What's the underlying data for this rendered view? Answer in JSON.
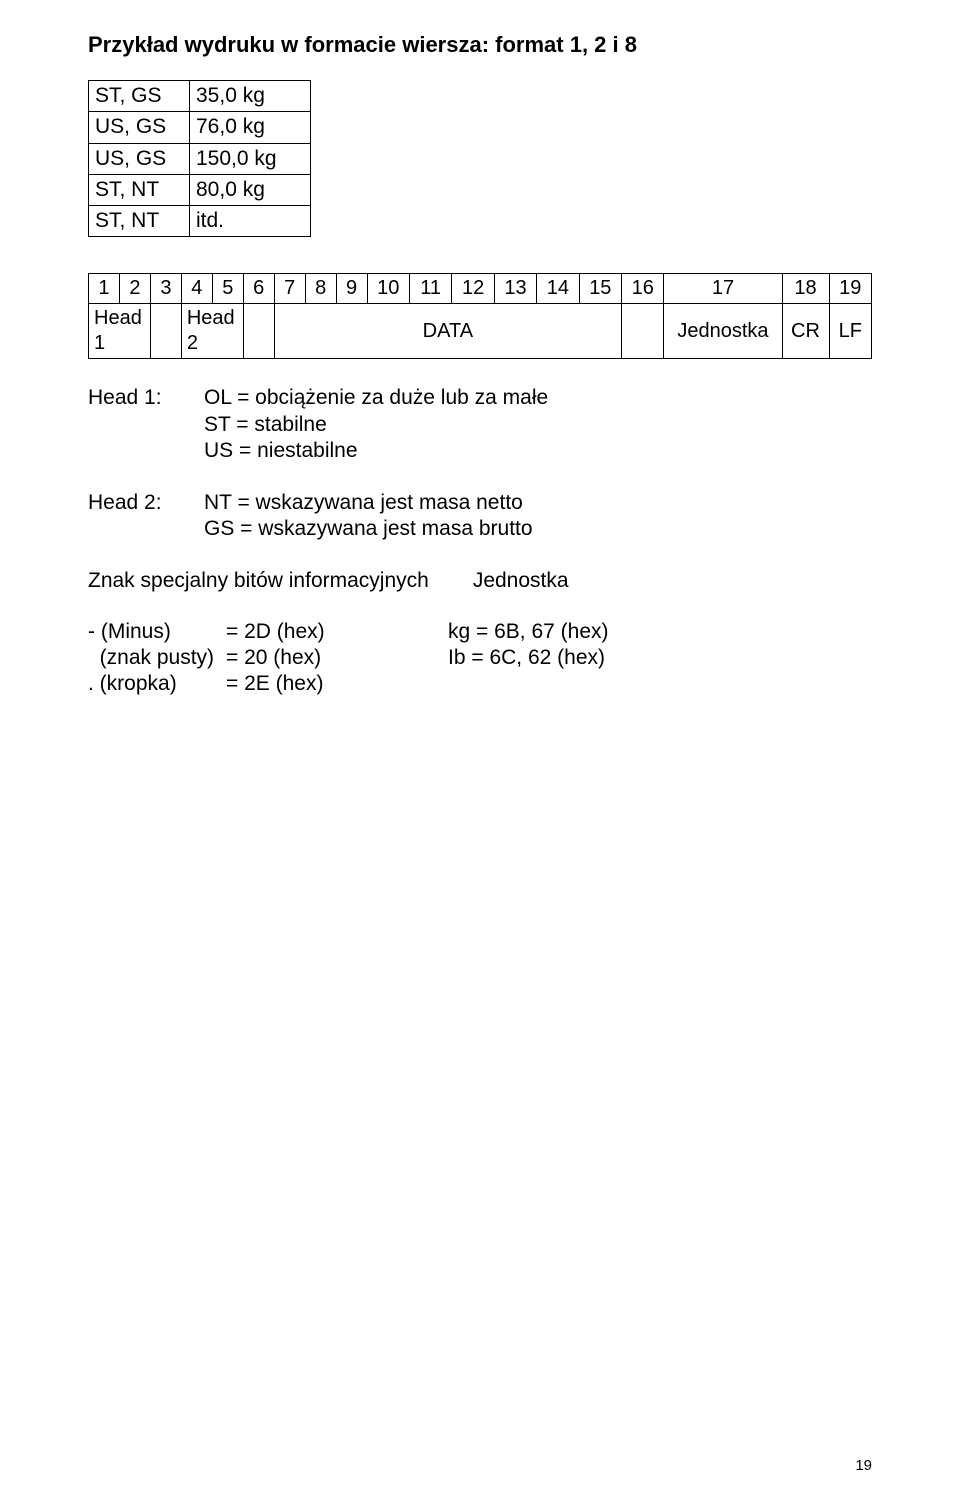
{
  "heading": "Przykład wydruku w formacie wiersza: format 1, 2 i 8",
  "table1": {
    "rows": [
      {
        "a": "ST, GS",
        "b": "35,0 kg"
      },
      {
        "a": "US, GS",
        "b": "76,0 kg"
      },
      {
        "a": "US, GS",
        "b": "150,0 kg"
      },
      {
        "a": "ST, NT",
        "b": "80,0 kg"
      },
      {
        "a": "ST, NT",
        "b": "itd."
      }
    ]
  },
  "table2": {
    "numbers": [
      "1",
      "2",
      "3",
      "4",
      "5",
      "6",
      "7",
      "8",
      "9",
      "10",
      "11",
      "12",
      "13",
      "14",
      "15",
      "16",
      "17",
      "18",
      "19"
    ],
    "labels": {
      "head1": "Head 1",
      "head2": "Head 2",
      "data": "DATA",
      "unit": "Jednostka",
      "cr": "CR",
      "lf": "LF"
    }
  },
  "head1": {
    "label": "Head 1:",
    "lines": [
      "OL = obciążenie za duże lub za małe",
      "ST = stabilne",
      "US = niestabilne"
    ]
  },
  "head2": {
    "label": "Head 2:",
    "lines": [
      "NT = wskazywana jest masa netto",
      "GS = wskazywana jest masa brutto"
    ]
  },
  "znak": {
    "left": "Znak specjalny bitów informacyjnych",
    "right": "Jednostka"
  },
  "mapping": {
    "rows": [
      {
        "c1": "- (Minus)",
        "c2": "= 2D (hex)",
        "c3": "kg = 6B, 67 (hex)"
      },
      {
        "c1": "  (znak pusty)",
        "c2": "= 20 (hex)",
        "c3": "Ib = 6C, 62 (hex)"
      },
      {
        "c1": ". (kropka)",
        "c2": "= 2E (hex)",
        "c3": ""
      }
    ]
  },
  "page_number": "19"
}
